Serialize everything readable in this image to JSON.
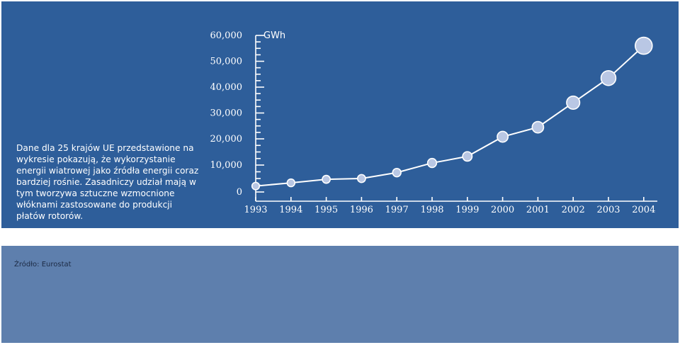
{
  "description": "Dane dla 25 krajów UE przedstawione na wykresie pokazują, że wykorzystanie energii wiatrowej jako źródła energii coraz bardziej rośnie. Zasadniczy udział mają w tym tworzywa sztuczne wzmocnione włóknami zastosowane do produkcji płatów rotorów.",
  "source": "Źródło: Eurostat",
  "colors": {
    "panel": "#2e5e9a",
    "footer": "#5e7fad",
    "line": "#ffffff",
    "marker": "#b9c7e4"
  },
  "chart_data": {
    "type": "line",
    "unit": "GWh",
    "x": [
      "1993",
      "1994",
      "1995",
      "1996",
      "1997",
      "1998",
      "1999",
      "2000",
      "2001",
      "2002",
      "2003",
      "2004"
    ],
    "series": [
      {
        "values": [
          2200,
          3400,
          4700,
          5000,
          7200,
          10800,
          13300,
          20800,
          24500,
          34000,
          43500,
          56000
        ]
      }
    ],
    "y_ticks": [
      {
        "value": 0,
        "label": "0"
      },
      {
        "value": 10000,
        "label": "10,000"
      },
      {
        "value": 20000,
        "label": "20,000"
      },
      {
        "value": 30000,
        "label": "30,000"
      },
      {
        "value": 40000,
        "label": "40,000"
      },
      {
        "value": 50000,
        "label": "50,000"
      },
      {
        "value": 60000,
        "label": "60,000"
      }
    ],
    "ylim": [
      0,
      60000
    ],
    "grid": false
  }
}
